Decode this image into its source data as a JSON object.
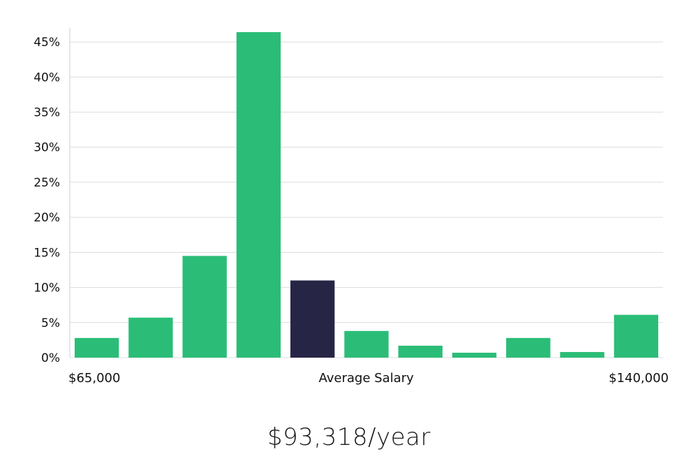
{
  "chart_data": {
    "type": "bar",
    "title": "",
    "xlabel": "",
    "ylabel": "",
    "ylim": [
      0,
      47
    ],
    "y_ticks": [
      "0%",
      "5%",
      "10%",
      "15%",
      "20%",
      "25%",
      "30%",
      "35%",
      "40%",
      "45%"
    ],
    "y_tick_values": [
      0,
      5,
      10,
      15,
      20,
      25,
      30,
      35,
      40,
      45
    ],
    "x_labels": {
      "left": "$65,000",
      "center": "Average Salary",
      "right": "$140,000"
    },
    "values": [
      2.8,
      5.7,
      14.5,
      46.4,
      11.0,
      3.8,
      1.7,
      0.7,
      2.8,
      0.8,
      6.1
    ],
    "highlight_index": 4,
    "grid": true,
    "colors": {
      "bar": "#2bbd77",
      "highlight": "#272545"
    }
  },
  "summary": {
    "salary": "$93,318/year"
  }
}
